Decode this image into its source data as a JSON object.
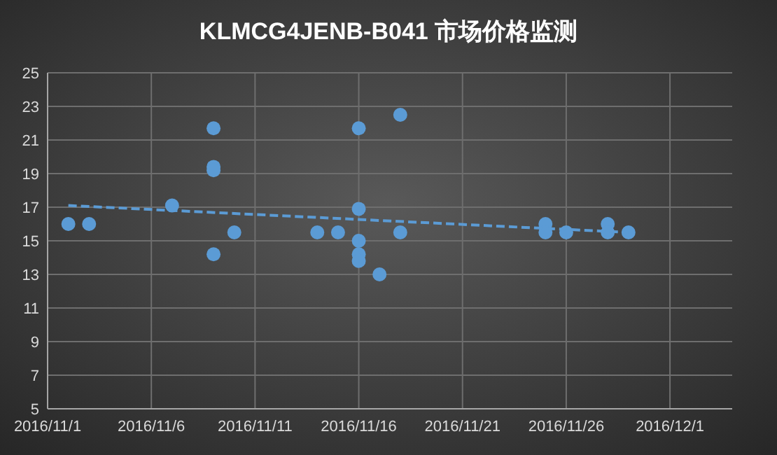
{
  "chart_data": {
    "type": "scatter",
    "title": "KLMCG4JENB-B041 市场价格监测",
    "xlim": [
      "2016-11-01",
      "2016-12-04"
    ],
    "xticks": [
      {
        "value": "2016-11-01",
        "label": "2016/11/1"
      },
      {
        "value": "2016-11-06",
        "label": "2016/11/6"
      },
      {
        "value": "2016-11-11",
        "label": "2016/11/11"
      },
      {
        "value": "2016-11-16",
        "label": "2016/11/16"
      },
      {
        "value": "2016-11-21",
        "label": "2016/11/21"
      },
      {
        "value": "2016-11-26",
        "label": "2016/11/26"
      },
      {
        "value": "2016-12-01",
        "label": "2016/12/1"
      }
    ],
    "ylim": [
      5,
      25
    ],
    "yticks": [
      5,
      7,
      9,
      11,
      13,
      15,
      17,
      19,
      21,
      23,
      25
    ],
    "grid": true,
    "series": [
      {
        "color": "#5b9bd5",
        "marker": "circle",
        "x": [
          "2016-11-02",
          "2016-11-03",
          "2016-11-07",
          "2016-11-09",
          "2016-11-09",
          "2016-11-09",
          "2016-11-09",
          "2016-11-10",
          "2016-11-14",
          "2016-11-15",
          "2016-11-16",
          "2016-11-16",
          "2016-11-16",
          "2016-11-16",
          "2016-11-16",
          "2016-11-17",
          "2016-11-18",
          "2016-11-18",
          "2016-11-25",
          "2016-11-25",
          "2016-11-26",
          "2016-11-28",
          "2016-11-28",
          "2016-11-29"
        ],
        "values": [
          16,
          16,
          17.1,
          21.7,
          19.4,
          19.2,
          14.2,
          15.5,
          15.5,
          15.5,
          21.7,
          16.9,
          15.0,
          14.2,
          13.8,
          13.0,
          22.5,
          15.5,
          16.0,
          15.5,
          15.5,
          16.0,
          15.5,
          15.5
        ]
      },
      {
        "type": "line",
        "color": "#5b9bd5",
        "line_style": "dashed",
        "x": [
          "2016-11-02",
          "2016-11-29"
        ],
        "values": [
          17.1,
          15.5
        ]
      }
    ]
  }
}
